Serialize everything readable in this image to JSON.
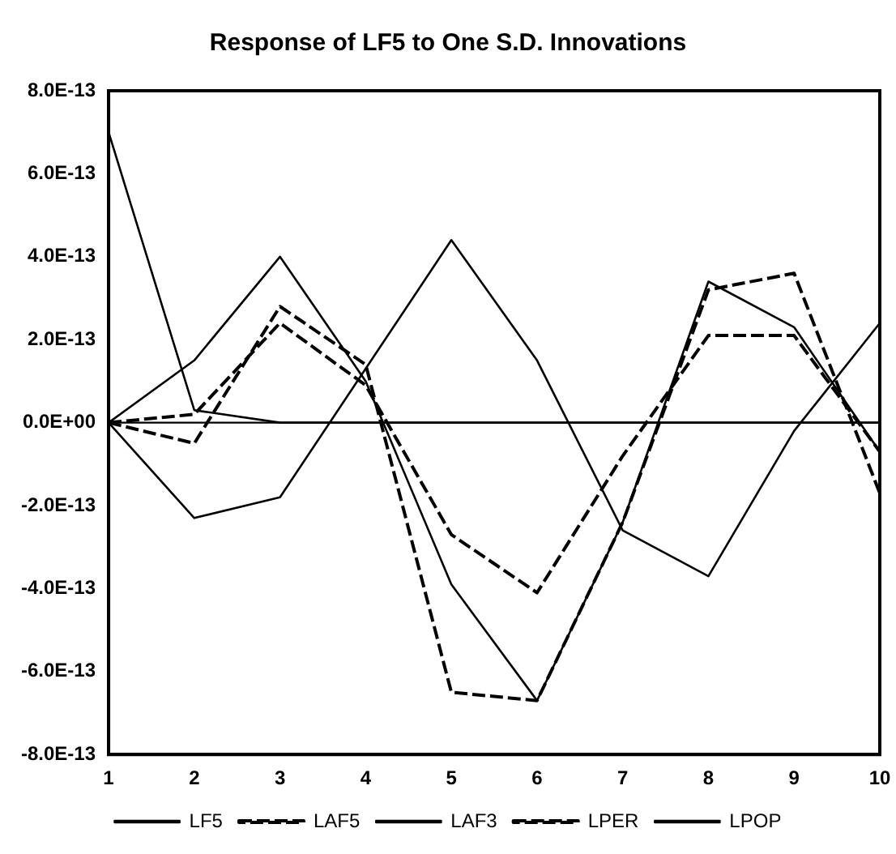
{
  "chart_data": {
    "type": "line",
    "title": "Response of LF5 to One S.D. Innovations",
    "categories": [
      "1",
      "2",
      "3",
      "4",
      "5",
      "6",
      "7",
      "8",
      "9",
      "10"
    ],
    "series": [
      {
        "name": "LF5",
        "color": "#000000",
        "line_style": "solid",
        "values": [
          7e-13,
          3e-14,
          0,
          0,
          0,
          0,
          0,
          0,
          0,
          0
        ]
      },
      {
        "name": "LAF5",
        "color": "#000000",
        "line_style": "dashed",
        "values": [
          0,
          2e-14,
          2.4e-13,
          9e-14,
          -2.7e-13,
          -4.1e-13,
          -8e-14,
          2.1e-13,
          2.1e-13,
          -7e-14
        ]
      },
      {
        "name": "LAF3",
        "color": "#000000",
        "line_style": "solid",
        "values": [
          0,
          1.5e-13,
          4e-13,
          1e-13,
          -3.9e-13,
          -6.7e-13,
          -2.4e-13,
          3.4e-13,
          2.3e-13,
          -7e-14
        ]
      },
      {
        "name": "LPER",
        "color": "#000000",
        "line_style": "dashed",
        "values": [
          0,
          -5e-14,
          2.8e-13,
          1.4e-13,
          -6.5e-13,
          -6.7e-13,
          -2.4e-13,
          3.2e-13,
          3.6e-13,
          -1.7e-13
        ]
      },
      {
        "name": "LPOP",
        "color": "#000000",
        "line_style": "solid",
        "values": [
          0,
          -2.3e-13,
          -1.8e-13,
          1.3e-13,
          4.4e-13,
          1.5e-13,
          -2.6e-13,
          -3.7e-13,
          -2e-14,
          2.4e-13
        ]
      }
    ],
    "ylim": [
      -8e-13,
      8e-13
    ],
    "yticks": [
      {
        "value": -8e-13,
        "label": "-8.0E-13"
      },
      {
        "value": -6e-13,
        "label": "-6.0E-13"
      },
      {
        "value": -4e-13,
        "label": "-4.0E-13"
      },
      {
        "value": -2e-13,
        "label": "-2.0E-13"
      },
      {
        "value": 0,
        "label": "0.0E+00"
      },
      {
        "value": 2e-13,
        "label": "2.0E-13"
      },
      {
        "value": 4e-13,
        "label": "4.0E-13"
      },
      {
        "value": 6e-13,
        "label": "6.0E-13"
      },
      {
        "value": 8e-13,
        "label": "8.0E-13"
      }
    ],
    "ref_lines": [
      {
        "axis": "y",
        "value": 0,
        "color": "#000000"
      }
    ],
    "grid": false,
    "marker": "none",
    "legend": "bottom"
  }
}
